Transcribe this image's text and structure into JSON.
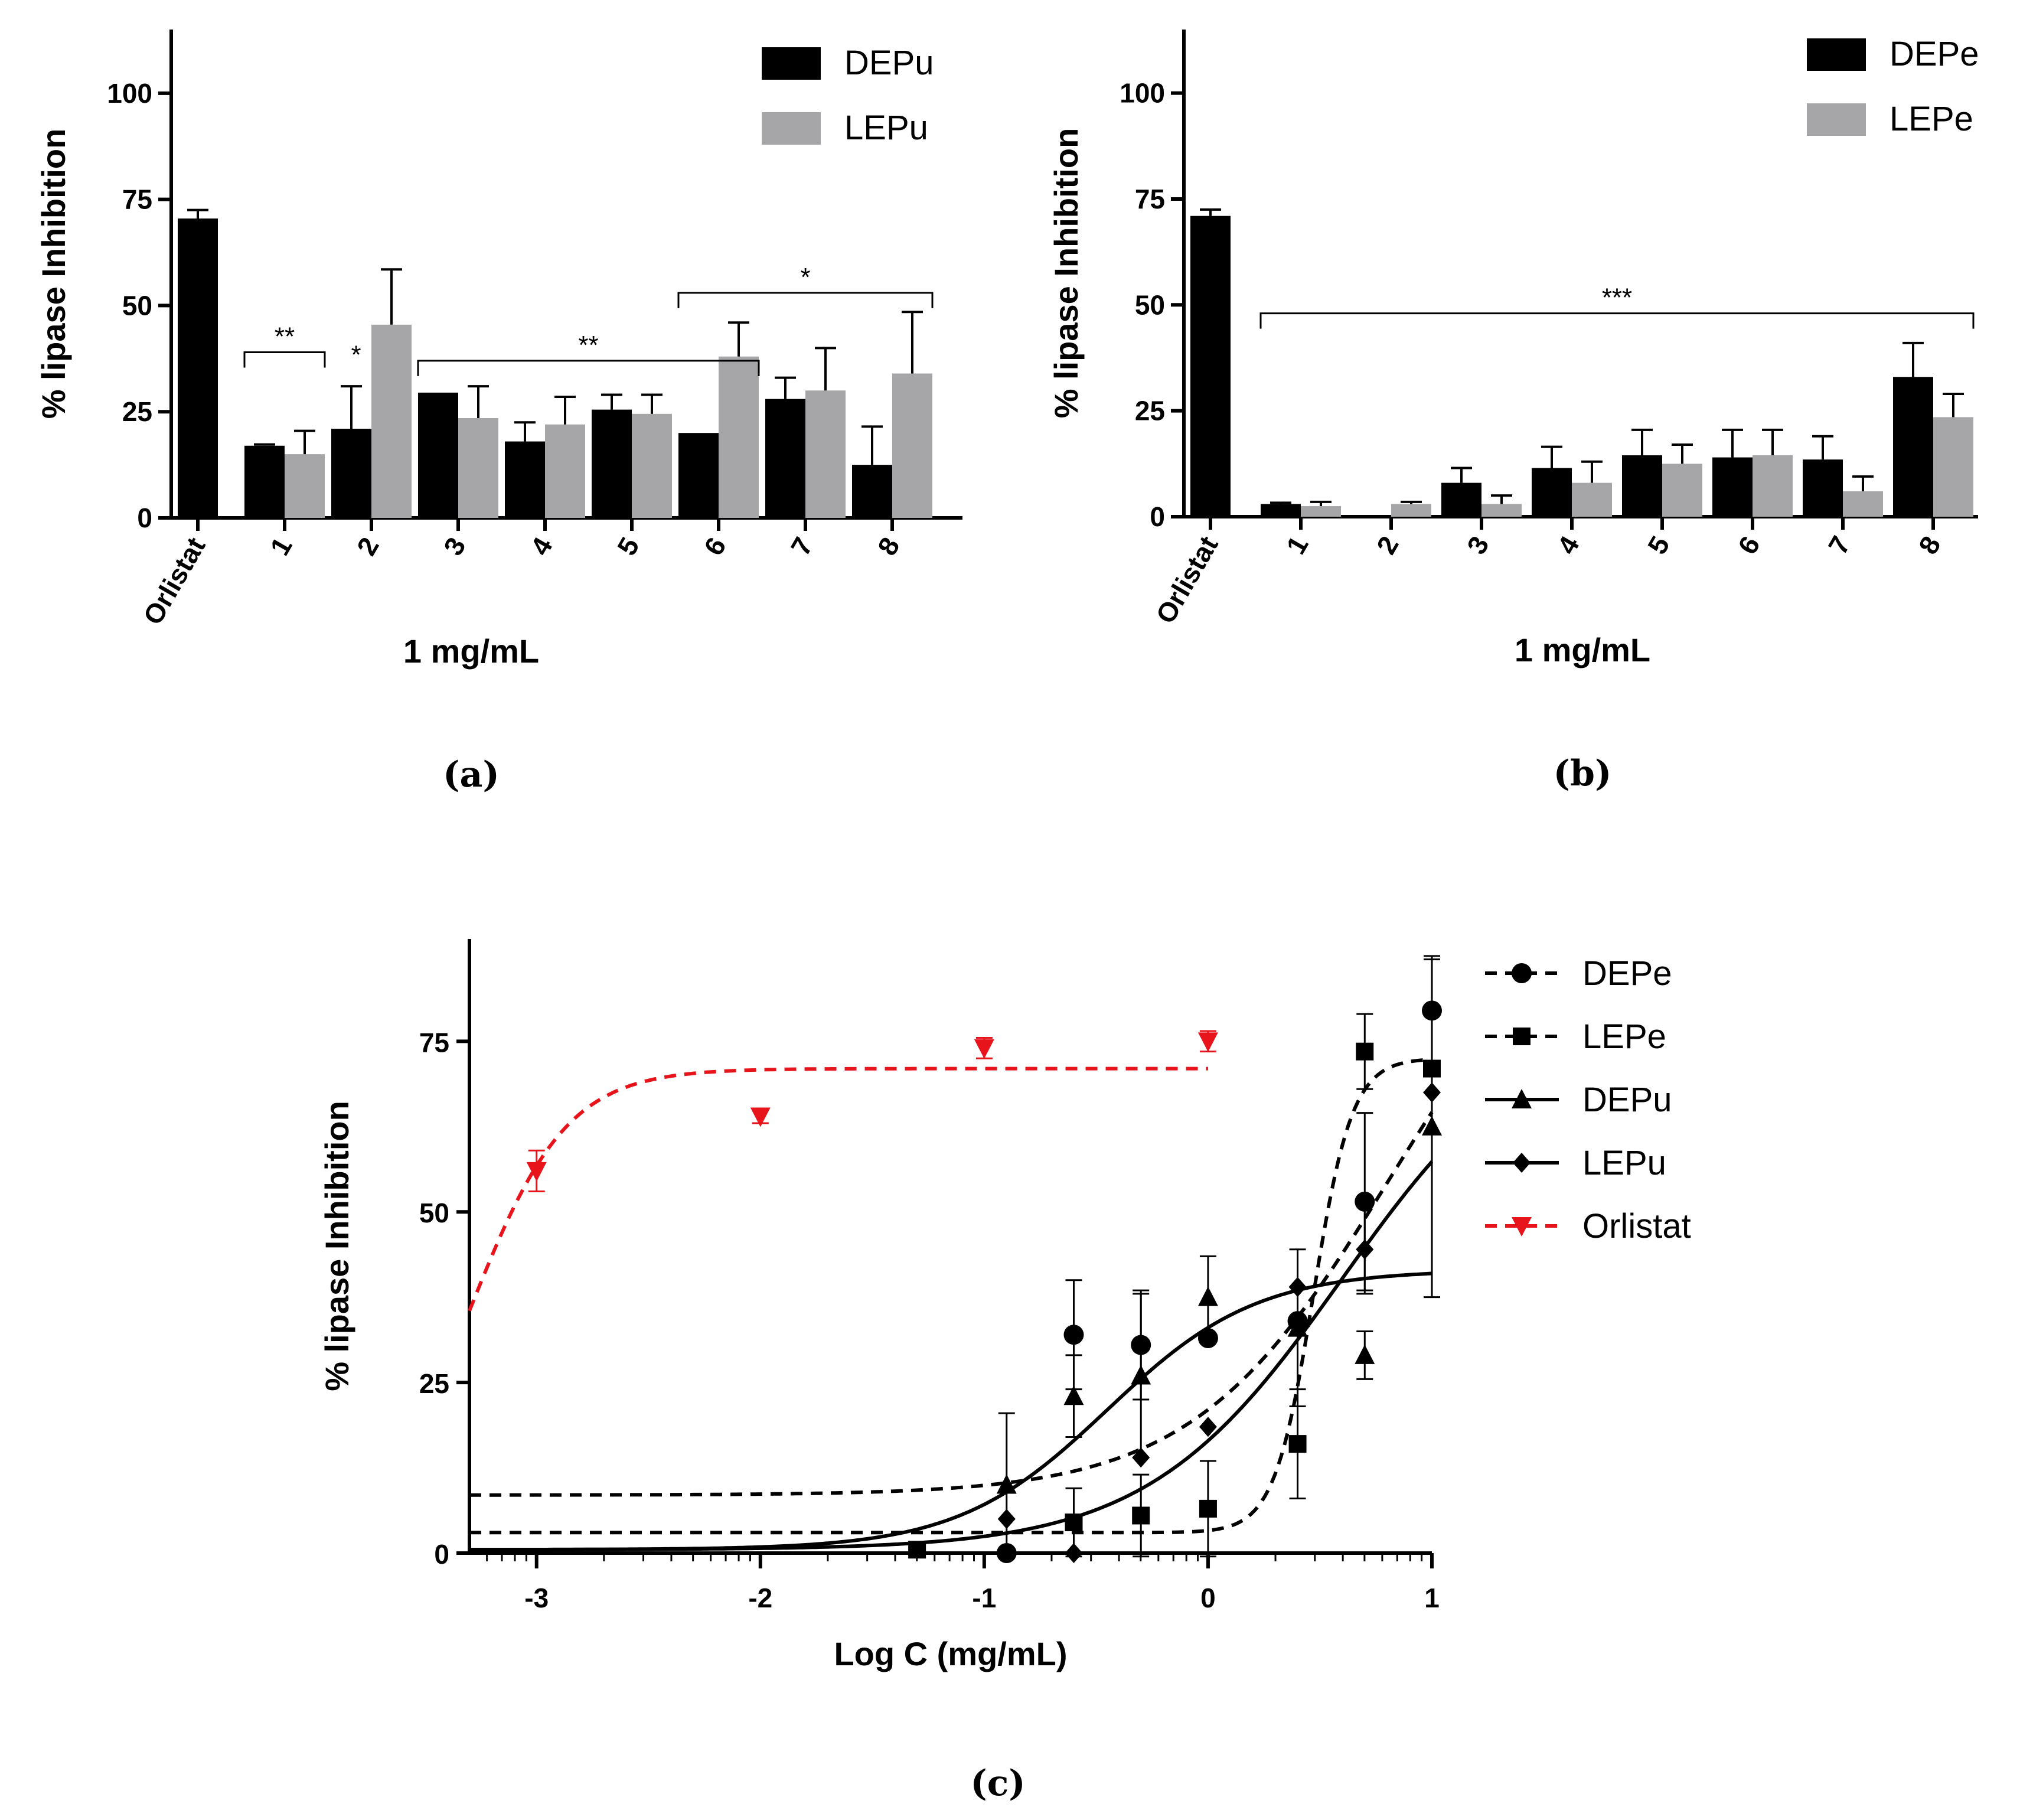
{
  "chart_data": [
    {
      "id": "a",
      "type": "bar",
      "caption": "(a)",
      "xlabel": "1 mg/mL",
      "ylabel": "% lipase Inhibition",
      "ylim": [
        0,
        115
      ],
      "yticks": [
        0,
        25,
        50,
        75,
        100
      ],
      "categories": [
        "Orlistat",
        "1",
        "2",
        "3",
        "4",
        "5",
        "6",
        "7",
        "8"
      ],
      "legend_position": "top-right",
      "series": [
        {
          "name": "DEPu",
          "color": "#000000",
          "values": [
            70.5,
            17,
            21,
            29.5,
            18,
            25.5,
            20,
            28,
            12.5
          ],
          "errors": [
            2,
            0.3,
            10,
            0,
            4.5,
            3.5,
            0,
            5,
            9
          ]
        },
        {
          "name": "LEPu",
          "color": "#a6a6a8",
          "values": [
            null,
            15,
            45.5,
            23.5,
            22,
            24.5,
            38,
            30,
            34
          ],
          "errors": [
            null,
            5.5,
            13,
            7.5,
            6.5,
            4.5,
            8,
            10,
            14.5
          ]
        }
      ],
      "annotations": [
        {
          "label": "**",
          "from": "1",
          "to": "1",
          "y": 39
        },
        {
          "label": "*",
          "at": "2",
          "y": 35
        },
        {
          "label": "**",
          "from": "3",
          "to": "6",
          "y": 37
        },
        {
          "label": "*",
          "from": "6",
          "to": "8",
          "y": 53
        }
      ]
    },
    {
      "id": "b",
      "type": "bar",
      "caption": "(b)",
      "xlabel": "1 mg/mL",
      "ylabel": "% lipase Inhibition",
      "ylim": [
        0,
        115
      ],
      "yticks": [
        0,
        25,
        50,
        75,
        100
      ],
      "categories": [
        "Orlistat",
        "1",
        "2",
        "3",
        "4",
        "5",
        "6",
        "7",
        "8"
      ],
      "legend_position": "top-right",
      "series": [
        {
          "name": "DEPe",
          "color": "#000000",
          "values": [
            71,
            3,
            0,
            8,
            11.5,
            14.5,
            14,
            13.5,
            33
          ],
          "errors": [
            1.5,
            0.3,
            0,
            3.5,
            5,
            6,
            6.5,
            5.5,
            8
          ]
        },
        {
          "name": "LEPe",
          "color": "#a6a6a8",
          "values": [
            null,
            2.5,
            3,
            3,
            8,
            12.5,
            14.5,
            6,
            23.5
          ],
          "errors": [
            null,
            1,
            0.5,
            2,
            5,
            4.5,
            6,
            3.5,
            5.5
          ]
        }
      ],
      "annotations": [
        {
          "label": "***",
          "from": "1",
          "to": "8",
          "y": 48
        }
      ]
    },
    {
      "id": "c",
      "type": "scatter",
      "caption": "(c)",
      "xlabel": "Log C (mg/mL)",
      "ylabel": "% lipase Inhibition",
      "xlim": [
        -3.3,
        1.0
      ],
      "ylim": [
        0,
        90
      ],
      "xticks": [
        -3,
        -2,
        -1,
        0,
        1
      ],
      "yticks": [
        0,
        25,
        50,
        75
      ],
      "legend_position": "right",
      "series": [
        {
          "name": "DEPe",
          "color": "#000000",
          "marker": "circle",
          "dash": true,
          "x": [
            -0.9,
            -0.6,
            -0.3,
            0,
            0.4,
            0.7,
            1.0
          ],
          "y": [
            0,
            32,
            30.5,
            31.5,
            34,
            51.5,
            79.5
          ],
          "err": [
            0,
            8,
            8,
            0,
            0,
            13,
            7.5
          ],
          "fit": {
            "bottom": 8.5,
            "top": 100,
            "logec50": 0.8,
            "hill": 1.0
          }
        },
        {
          "name": "LEPe",
          "color": "#000000",
          "marker": "square",
          "dash": true,
          "x": [
            -1.3,
            -0.6,
            -0.3,
            0,
            0.4,
            0.7,
            1.0
          ],
          "y": [
            0.5,
            4.5,
            5.5,
            6.5,
            16,
            73.5,
            71
          ],
          "err": [
            0,
            5,
            6,
            7,
            8,
            5.5,
            0
          ],
          "fit": {
            "bottom": 3,
            "top": 72.5,
            "logec50": 0.47,
            "hill": 5.0
          }
        },
        {
          "name": "DEPu",
          "color": "#000000",
          "marker": "triangle",
          "dash": false,
          "x": [
            -0.9,
            -0.6,
            -0.3,
            0,
            0.4,
            0.7,
            1.0
          ],
          "y": [
            10,
            23,
            26,
            37.5,
            33,
            29,
            62.5
          ],
          "err": [
            10.5,
            6,
            12,
            6,
            11.5,
            3.5,
            25
          ],
          "fit": {
            "bottom": 0.5,
            "top": 41.5,
            "logec50": -0.45,
            "hill": 1.3
          }
        },
        {
          "name": "LEPu",
          "color": "#000000",
          "marker": "diamond",
          "dash": false,
          "x": [
            -0.9,
            -0.6,
            -0.3,
            0,
            0.4,
            0.7,
            1.0
          ],
          "y": [
            5,
            0,
            14,
            18.5,
            39,
            44.5,
            67.5
          ],
          "err": [
            0,
            0,
            0,
            0,
            0,
            6.5,
            0
          ],
          "fit": {
            "bottom": 0.5,
            "top": 80,
            "logec50": 0.6,
            "hill": 1.0
          }
        },
        {
          "name": "Orlistat",
          "color": "#e8141c",
          "marker": "triangle-down",
          "dash": true,
          "x": [
            -3,
            -2,
            -1,
            0
          ],
          "y": [
            56,
            64,
            74,
            75
          ],
          "err": [
            3,
            1,
            1.5,
            1.5
          ],
          "fit": {
            "bottom": 0,
            "top": 71,
            "logec50": -3.3,
            "hill": 2.0,
            "xmax": 0
          }
        }
      ]
    }
  ]
}
